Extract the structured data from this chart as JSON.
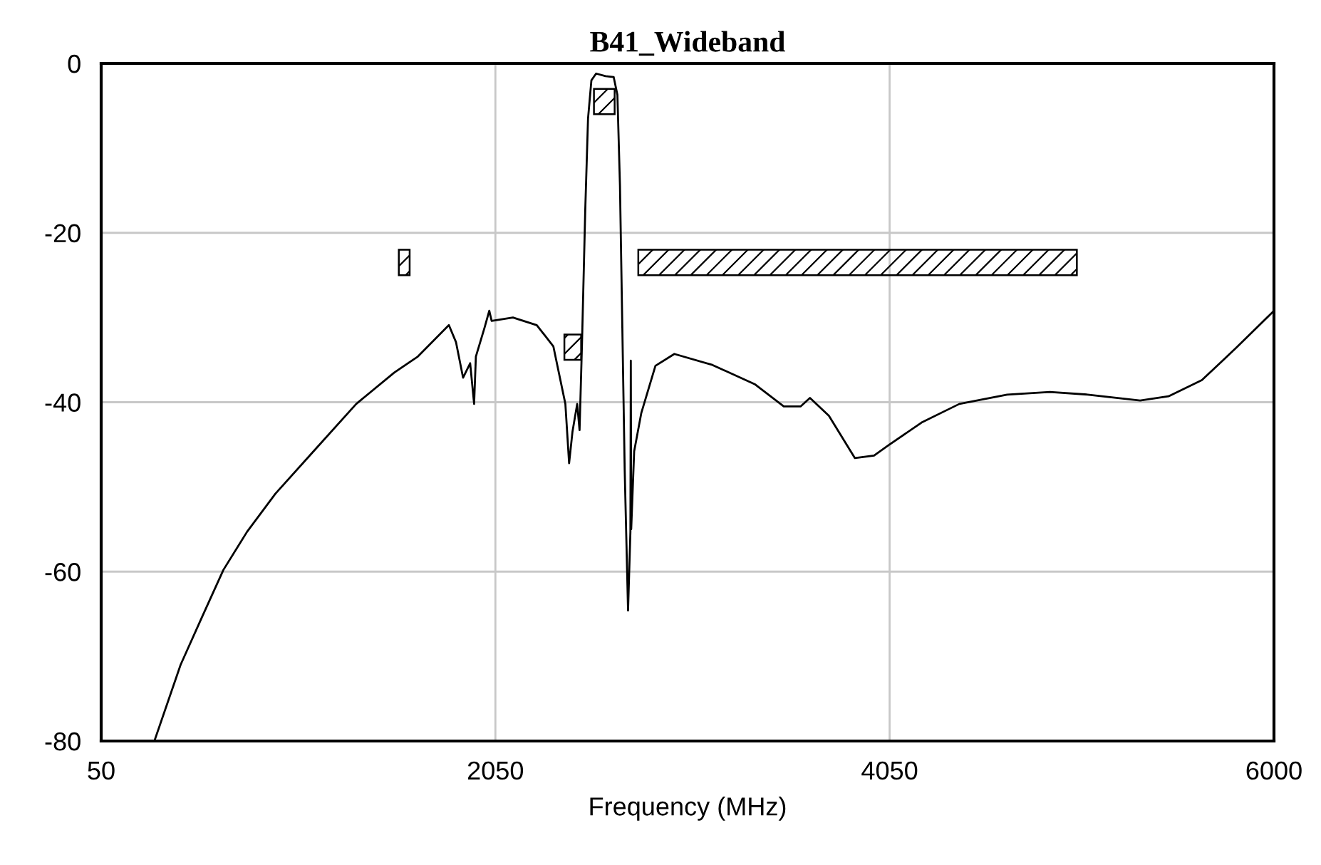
{
  "chart_data": {
    "type": "line",
    "title": "B41_Wideband",
    "xlabel": "Frequency (MHz)",
    "xlim": [
      50,
      6000
    ],
    "xticks": [
      50,
      2050,
      4050,
      6000
    ],
    "ylim": [
      -80,
      0
    ],
    "yticks": [
      -80,
      -60,
      -40,
      -20,
      0
    ],
    "grid": true,
    "series": [
      {
        "color": "#000000",
        "x": [
          320,
          453,
          561,
          670,
          790,
          934,
          1127,
          1344,
          1537,
          1657,
          1814,
          1850,
          1886,
          1922,
          1942,
          1951,
          1995,
          2019,
          2031,
          2139,
          2260,
          2344,
          2405,
          2424,
          2441,
          2465,
          2477,
          2489,
          2506,
          2520,
          2537,
          2561,
          2609,
          2650,
          2669,
          2682,
          2694,
          2706,
          2723,
          2735,
          2737,
          2739,
          2754,
          2790,
          2862,
          2958,
          3151,
          3368,
          3513,
          3598,
          3646,
          3742,
          3874,
          3971,
          4043,
          4212,
          4404,
          4646,
          4863,
          5055,
          5321,
          5465,
          5634,
          5803,
          6000
        ],
        "values": [
          -80,
          -71.0,
          -65.4,
          -59.8,
          -55.3,
          -50.8,
          -45.8,
          -40.2,
          -36.5,
          -34.6,
          -30.9,
          -32.9,
          -37.1,
          -35.4,
          -40.2,
          -34.6,
          -31.2,
          -29.2,
          -30.4,
          -30.0,
          -30.9,
          -33.4,
          -40.2,
          -47.2,
          -43.5,
          -40.2,
          -43.3,
          -33.4,
          -17.2,
          -6.5,
          -2.0,
          -1.2,
          -1.5,
          -1.6,
          -3.7,
          -14.4,
          -31.2,
          -48.0,
          -64.6,
          -55.3,
          -35.1,
          -55.0,
          -45.8,
          -41.3,
          -35.7,
          -34.3,
          -35.6,
          -37.9,
          -40.5,
          -40.5,
          -39.5,
          -41.6,
          -46.6,
          -46.3,
          -45.1,
          -42.4,
          -40.2,
          -39.1,
          -38.8,
          -39.1,
          -39.8,
          -39.3,
          -37.4,
          -33.7,
          -29.2
        ]
      },
      {
        "type": "area",
        "color": "#000000",
        "x": [
          1560,
          1560,
          1615,
          1615
        ],
        "values": [
          -25,
          -22,
          -22,
          -25
        ]
      },
      {
        "type": "area",
        "color": "#000000",
        "x": [
          2400,
          2400,
          2485,
          2485
        ],
        "values": [
          -35,
          -32,
          -32,
          -35
        ]
      },
      {
        "type": "area",
        "color": "#000000",
        "x": [
          2550,
          2550,
          2655,
          2655
        ],
        "values": [
          -6,
          -3,
          -3,
          -6
        ]
      },
      {
        "type": "area",
        "color": "#000000",
        "x": [
          2775,
          2775,
          5000,
          5000
        ],
        "values": [
          -25,
          -22,
          -22,
          -25
        ]
      }
    ]
  }
}
